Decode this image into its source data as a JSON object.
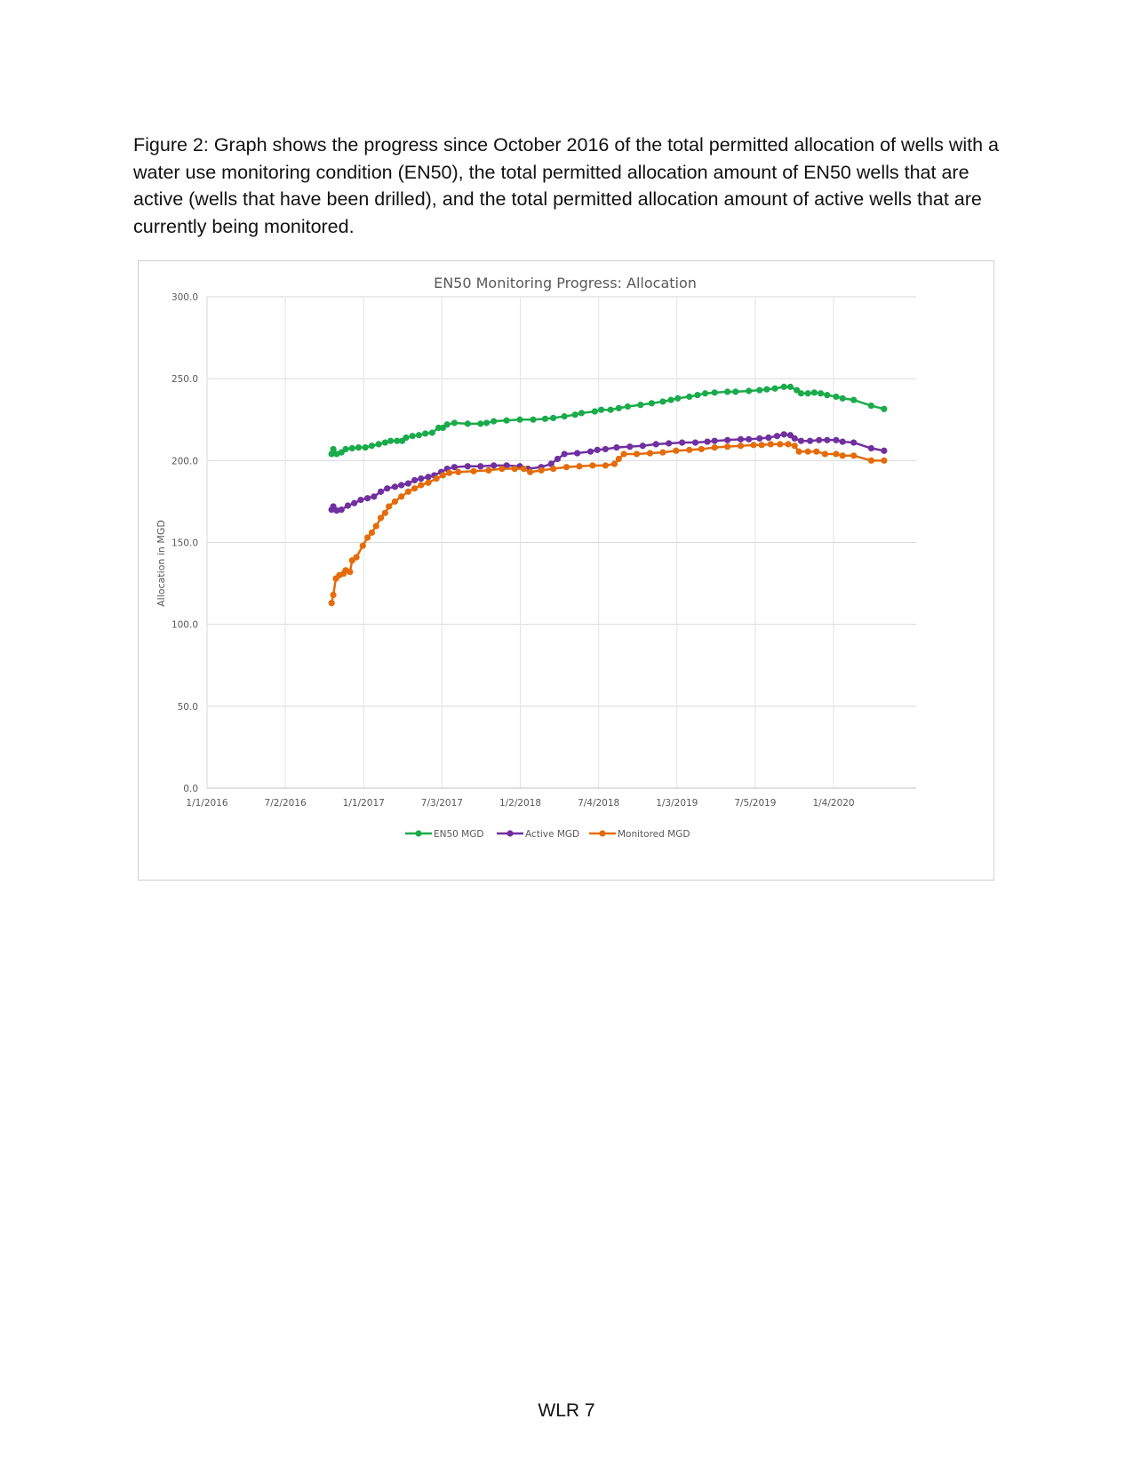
{
  "caption": "Figure 2: Graph shows the progress since October 2016 of the total permitted allocation of wells with a water use monitoring condition (EN50), the total permitted allocation amount of EN50 wells that are active (wells that have been drilled), and the total permitted allocation amount of active wells that are currently being monitored.",
  "footer": "WLR 7",
  "chart_data": {
    "type": "line",
    "title": "EN50 Monitoring Progress: Allocation",
    "xlabel": "",
    "ylabel": "Allocation in MGD",
    "ylim": [
      0,
      300
    ],
    "yticks": [
      "0.0",
      "50.0",
      "100.0",
      "150.0",
      "200.0",
      "250.0",
      "300.0"
    ],
    "xlim": [
      "2016-01-01",
      "2020-07-15"
    ],
    "xticks": [
      {
        "date": "2016-01-01",
        "label": "1/1/2016"
      },
      {
        "date": "2016-07-02",
        "label": "7/2/2016"
      },
      {
        "date": "2017-01-01",
        "label": "1/1/2017"
      },
      {
        "date": "2017-07-03",
        "label": "7/3/2017"
      },
      {
        "date": "2018-01-02",
        "label": "1/2/2018"
      },
      {
        "date": "2018-07-04",
        "label": "7/4/2018"
      },
      {
        "date": "2019-01-03",
        "label": "1/3/2019"
      },
      {
        "date": "2019-07-05",
        "label": "7/5/2019"
      },
      {
        "date": "2020-01-04",
        "label": "1/4/2020"
      }
    ],
    "grid": true,
    "legend_position": "bottom",
    "series": [
      {
        "name": "EN50 MGD",
        "color": "#1aab4b",
        "points": [
          [
            "2016-10-18",
            204
          ],
          [
            "2016-10-22",
            207
          ],
          [
            "2016-10-30",
            204
          ],
          [
            "2016-11-10",
            205
          ],
          [
            "2016-11-20",
            207
          ],
          [
            "2016-12-05",
            207.5
          ],
          [
            "2016-12-20",
            208
          ],
          [
            "2017-01-05",
            208
          ],
          [
            "2017-01-20",
            209
          ],
          [
            "2017-02-05",
            210
          ],
          [
            "2017-02-20",
            211
          ],
          [
            "2017-03-05",
            212
          ],
          [
            "2017-03-20",
            212
          ],
          [
            "2017-04-01",
            212
          ],
          [
            "2017-04-10",
            214
          ],
          [
            "2017-04-25",
            215
          ],
          [
            "2017-05-10",
            215.5
          ],
          [
            "2017-05-25",
            216.5
          ],
          [
            "2017-06-10",
            217
          ],
          [
            "2017-06-25",
            220
          ],
          [
            "2017-07-05",
            220
          ],
          [
            "2017-07-15",
            222
          ],
          [
            "2017-08-01",
            223
          ],
          [
            "2017-09-01",
            222.5
          ],
          [
            "2017-10-01",
            222.5
          ],
          [
            "2017-10-15",
            223
          ],
          [
            "2017-11-01",
            224
          ],
          [
            "2017-12-01",
            224.5
          ],
          [
            "2018-01-01",
            225
          ],
          [
            "2018-02-01",
            225
          ],
          [
            "2018-03-01",
            225.5
          ],
          [
            "2018-03-20",
            226
          ],
          [
            "2018-04-15",
            227
          ],
          [
            "2018-05-10",
            228
          ],
          [
            "2018-05-25",
            229
          ],
          [
            "2018-06-25",
            230
          ],
          [
            "2018-07-10",
            231
          ],
          [
            "2018-08-01",
            231
          ],
          [
            "2018-08-20",
            232
          ],
          [
            "2018-09-10",
            233
          ],
          [
            "2018-10-10",
            234
          ],
          [
            "2018-11-05",
            235
          ],
          [
            "2018-12-01",
            236
          ],
          [
            "2018-12-20",
            237
          ],
          [
            "2019-01-05",
            238
          ],
          [
            "2019-02-01",
            239
          ],
          [
            "2019-02-20",
            240
          ],
          [
            "2019-03-10",
            241
          ],
          [
            "2019-04-01",
            241.5
          ],
          [
            "2019-05-01",
            242
          ],
          [
            "2019-05-20",
            242
          ],
          [
            "2019-06-20",
            242.5
          ],
          [
            "2019-07-15",
            243
          ],
          [
            "2019-08-01",
            243.5
          ],
          [
            "2019-08-20",
            244
          ],
          [
            "2019-09-10",
            245
          ],
          [
            "2019-09-25",
            245
          ],
          [
            "2019-10-10",
            243
          ],
          [
            "2019-10-20",
            241
          ],
          [
            "2019-11-05",
            241
          ],
          [
            "2019-11-20",
            241.5
          ],
          [
            "2019-12-05",
            241
          ],
          [
            "2019-12-20",
            240
          ],
          [
            "2020-01-10",
            239
          ],
          [
            "2020-01-25",
            238
          ],
          [
            "2020-02-20",
            237
          ],
          [
            "2020-04-01",
            233.5
          ],
          [
            "2020-05-01",
            231.5
          ]
        ]
      },
      {
        "name": "Active MGD",
        "color": "#7030a0",
        "points": [
          [
            "2016-10-18",
            170
          ],
          [
            "2016-10-22",
            172
          ],
          [
            "2016-10-30",
            169.5
          ],
          [
            "2016-11-10",
            170
          ],
          [
            "2016-11-25",
            172.5
          ],
          [
            "2016-12-10",
            174
          ],
          [
            "2016-12-25",
            176
          ],
          [
            "2017-01-10",
            177
          ],
          [
            "2017-01-25",
            178
          ],
          [
            "2017-02-10",
            181
          ],
          [
            "2017-02-25",
            183
          ],
          [
            "2017-03-15",
            184
          ],
          [
            "2017-03-30",
            185
          ],
          [
            "2017-04-15",
            186
          ],
          [
            "2017-04-30",
            188
          ],
          [
            "2017-05-15",
            189
          ],
          [
            "2017-06-01",
            190
          ],
          [
            "2017-06-15",
            191
          ],
          [
            "2017-07-01",
            193
          ],
          [
            "2017-07-15",
            195
          ],
          [
            "2017-08-01",
            196
          ],
          [
            "2017-09-01",
            196.5
          ],
          [
            "2017-10-01",
            196.5
          ],
          [
            "2017-11-01",
            197
          ],
          [
            "2017-12-01",
            197
          ],
          [
            "2018-01-01",
            196.5
          ],
          [
            "2018-01-20",
            195
          ],
          [
            "2018-02-20",
            196
          ],
          [
            "2018-03-15",
            198
          ],
          [
            "2018-03-30",
            201
          ],
          [
            "2018-04-15",
            204
          ],
          [
            "2018-05-15",
            204.5
          ],
          [
            "2018-06-15",
            205.5
          ],
          [
            "2018-07-01",
            206.5
          ],
          [
            "2018-07-20",
            207
          ],
          [
            "2018-08-15",
            208
          ],
          [
            "2018-09-15",
            208.5
          ],
          [
            "2018-10-15",
            209
          ],
          [
            "2018-11-15",
            210
          ],
          [
            "2018-12-15",
            210.5
          ],
          [
            "2019-01-15",
            211
          ],
          [
            "2019-02-15",
            211
          ],
          [
            "2019-03-15",
            211.5
          ],
          [
            "2019-04-01",
            212
          ],
          [
            "2019-05-01",
            212.5
          ],
          [
            "2019-06-01",
            213
          ],
          [
            "2019-06-20",
            213
          ],
          [
            "2019-07-15",
            213.5
          ],
          [
            "2019-08-05",
            214
          ],
          [
            "2019-08-25",
            215
          ],
          [
            "2019-09-10",
            216
          ],
          [
            "2019-09-25",
            215.5
          ],
          [
            "2019-10-05",
            213.5
          ],
          [
            "2019-10-20",
            212
          ],
          [
            "2019-11-10",
            212
          ],
          [
            "2019-12-01",
            212.5
          ],
          [
            "2019-12-20",
            212.5
          ],
          [
            "2020-01-10",
            212.5
          ],
          [
            "2020-01-25",
            211.5
          ],
          [
            "2020-02-20",
            211
          ],
          [
            "2020-04-01",
            207.5
          ],
          [
            "2020-05-01",
            206
          ]
        ]
      },
      {
        "name": "Monitored MGD",
        "color": "#e46c0a",
        "points": [
          [
            "2016-10-18",
            113
          ],
          [
            "2016-10-22",
            118
          ],
          [
            "2016-10-28",
            128
          ],
          [
            "2016-11-05",
            130
          ],
          [
            "2016-11-15",
            131
          ],
          [
            "2016-11-20",
            133
          ],
          [
            "2016-11-30",
            132
          ],
          [
            "2016-12-05",
            139
          ],
          [
            "2016-12-15",
            141
          ],
          [
            "2016-12-30",
            148
          ],
          [
            "2017-01-10",
            153
          ],
          [
            "2017-01-20",
            156
          ],
          [
            "2017-01-30",
            160
          ],
          [
            "2017-02-10",
            165
          ],
          [
            "2017-02-20",
            168
          ],
          [
            "2017-03-01",
            172
          ],
          [
            "2017-03-15",
            175
          ],
          [
            "2017-03-30",
            178
          ],
          [
            "2017-04-15",
            181
          ],
          [
            "2017-04-30",
            183
          ],
          [
            "2017-05-15",
            185
          ],
          [
            "2017-06-01",
            186.5
          ],
          [
            "2017-06-20",
            189
          ],
          [
            "2017-07-05",
            191
          ],
          [
            "2017-07-20",
            192.5
          ],
          [
            "2017-08-10",
            193
          ],
          [
            "2017-09-15",
            193.5
          ],
          [
            "2017-10-20",
            194
          ],
          [
            "2017-11-20",
            195
          ],
          [
            "2017-12-20",
            195
          ],
          [
            "2018-01-10",
            195
          ],
          [
            "2018-01-25",
            193
          ],
          [
            "2018-02-20",
            194
          ],
          [
            "2018-03-20",
            195
          ],
          [
            "2018-04-20",
            196
          ],
          [
            "2018-05-20",
            196.5
          ],
          [
            "2018-06-20",
            197
          ],
          [
            "2018-07-20",
            197
          ],
          [
            "2018-08-10",
            198
          ],
          [
            "2018-08-20",
            201
          ],
          [
            "2018-09-01",
            204
          ],
          [
            "2018-10-01",
            204
          ],
          [
            "2018-11-01",
            204.5
          ],
          [
            "2018-12-01",
            205
          ],
          [
            "2019-01-01",
            206
          ],
          [
            "2019-02-01",
            206.5
          ],
          [
            "2019-03-01",
            207
          ],
          [
            "2019-04-01",
            208
          ],
          [
            "2019-05-01",
            208.5
          ],
          [
            "2019-06-01",
            209
          ],
          [
            "2019-07-01",
            209.5
          ],
          [
            "2019-07-20",
            209.5
          ],
          [
            "2019-08-10",
            210
          ],
          [
            "2019-09-01",
            210
          ],
          [
            "2019-09-20",
            210
          ],
          [
            "2019-10-05",
            209
          ],
          [
            "2019-10-15",
            205.5
          ],
          [
            "2019-11-05",
            205.5
          ],
          [
            "2019-11-25",
            205.5
          ],
          [
            "2019-12-15",
            204
          ],
          [
            "2020-01-10",
            204
          ],
          [
            "2020-01-25",
            203
          ],
          [
            "2020-02-20",
            203
          ],
          [
            "2020-04-01",
            200
          ],
          [
            "2020-05-01",
            200
          ]
        ]
      }
    ]
  }
}
